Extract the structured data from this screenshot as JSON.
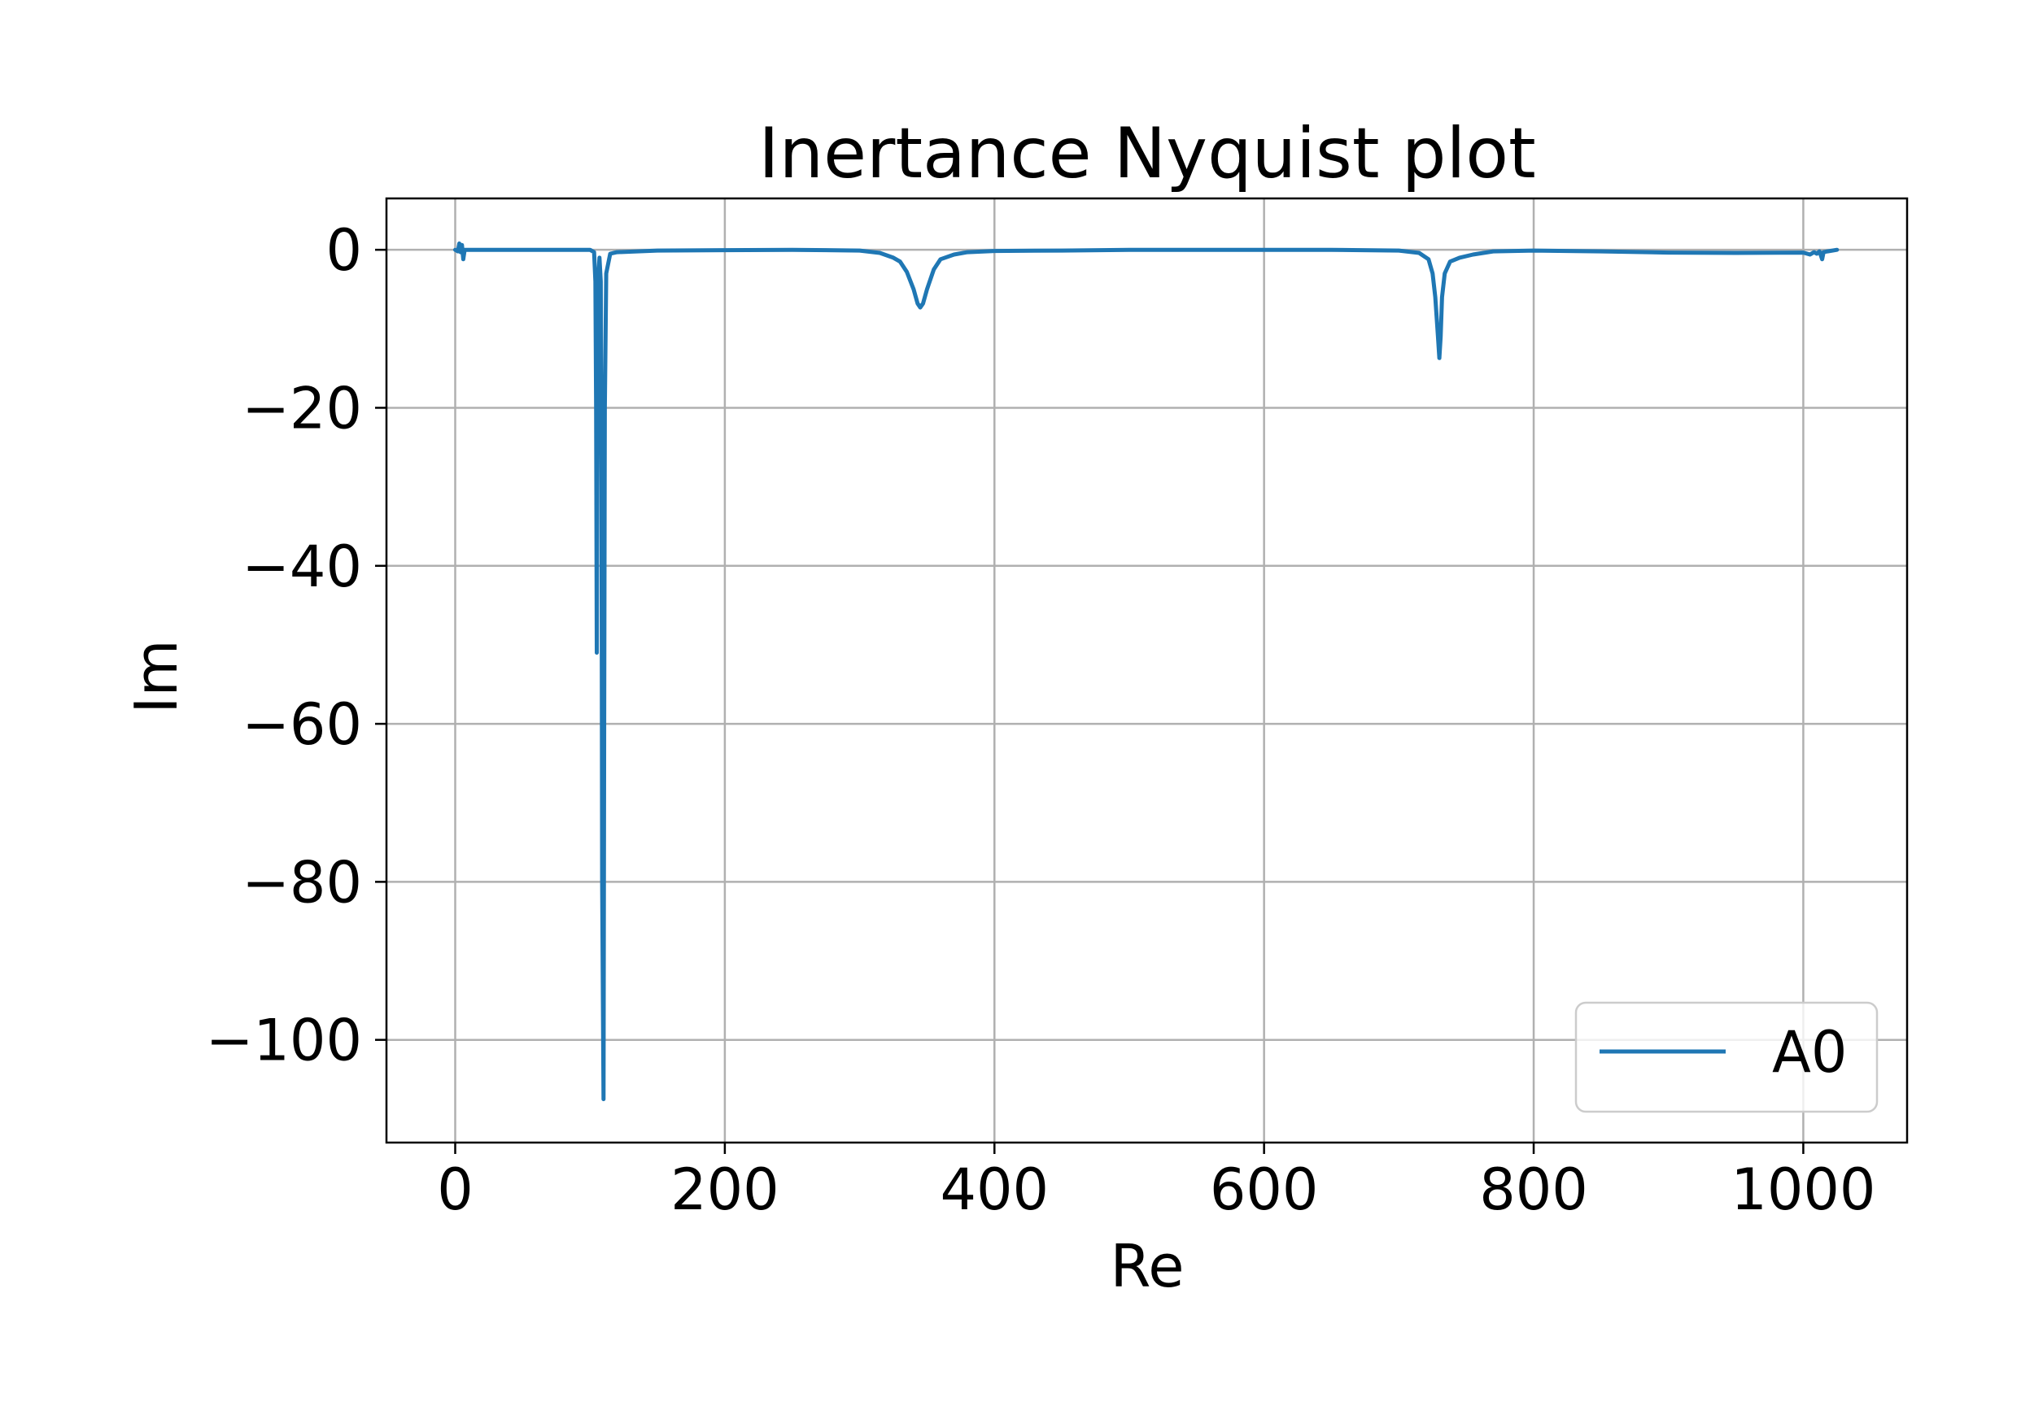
{
  "chart_data": {
    "type": "line",
    "title": "Inertance Nyquist plot",
    "xlabel": "Re",
    "ylabel": "Im",
    "xlim": [
      -51,
      1077
    ],
    "ylim": [
      -113,
      6.5
    ],
    "xticks": [
      0,
      200,
      400,
      600,
      800,
      1000
    ],
    "yticks": [
      0,
      -20,
      -40,
      -60,
      -80,
      -100
    ],
    "xtick_labels": [
      "0",
      "200",
      "400",
      "600",
      "800",
      "1000"
    ],
    "ytick_labels": [
      "0",
      "−20",
      "−40",
      "−60",
      "−80",
      "−100"
    ],
    "grid": true,
    "legend_position": "lower right",
    "series": [
      {
        "name": "A0",
        "color": "#1f77b4",
        "points": [
          [
            0,
            0
          ],
          [
            2,
            -0.2
          ],
          [
            3,
            0.8
          ],
          [
            4,
            -0.3
          ],
          [
            5,
            0.6
          ],
          [
            6,
            -1.2
          ],
          [
            7,
            0
          ],
          [
            10,
            0
          ],
          [
            50,
            0
          ],
          [
            100,
            0
          ],
          [
            103,
            -0.3
          ],
          [
            104,
            -4
          ],
          [
            104.5,
            -20
          ],
          [
            105,
            -51
          ],
          [
            105.5,
            -20
          ],
          [
            106,
            -4
          ],
          [
            107,
            -1
          ],
          [
            108,
            -4
          ],
          [
            108.5,
            -30
          ],
          [
            109,
            -80
          ],
          [
            110,
            -107.5
          ],
          [
            110.5,
            -60
          ],
          [
            111,
            -20
          ],
          [
            112,
            -3
          ],
          [
            115,
            -0.5
          ],
          [
            120,
            -0.3
          ],
          [
            150,
            -0.1
          ],
          [
            200,
            -0.05
          ],
          [
            250,
            0
          ],
          [
            300,
            -0.1
          ],
          [
            315,
            -0.4
          ],
          [
            325,
            -1
          ],
          [
            330,
            -1.5
          ],
          [
            335,
            -2.8
          ],
          [
            340,
            -5
          ],
          [
            343,
            -6.8
          ],
          [
            345,
            -7.3
          ],
          [
            347,
            -6.8
          ],
          [
            350,
            -5
          ],
          [
            355,
            -2.5
          ],
          [
            360,
            -1.2
          ],
          [
            370,
            -0.6
          ],
          [
            380,
            -0.3
          ],
          [
            400,
            -0.15
          ],
          [
            450,
            -0.1
          ],
          [
            500,
            0
          ],
          [
            600,
            0
          ],
          [
            650,
            0
          ],
          [
            700,
            -0.1
          ],
          [
            715,
            -0.4
          ],
          [
            722,
            -1.2
          ],
          [
            725,
            -3
          ],
          [
            727,
            -6
          ],
          [
            729,
            -11
          ],
          [
            730,
            -13.7
          ],
          [
            731,
            -11
          ],
          [
            732,
            -6
          ],
          [
            734,
            -3
          ],
          [
            738,
            -1.5
          ],
          [
            745,
            -1
          ],
          [
            755,
            -0.6
          ],
          [
            770,
            -0.2
          ],
          [
            800,
            -0.1
          ],
          [
            850,
            -0.2
          ],
          [
            900,
            -0.35
          ],
          [
            950,
            -0.4
          ],
          [
            1000,
            -0.35
          ],
          [
            1005,
            -0.6
          ],
          [
            1008,
            -0.3
          ],
          [
            1010,
            -0.5
          ],
          [
            1012,
            -0.2
          ],
          [
            1014,
            -1.2
          ],
          [
            1015,
            -0.3
          ],
          [
            1018,
            -0.2
          ],
          [
            1025,
            0
          ]
        ]
      }
    ]
  }
}
